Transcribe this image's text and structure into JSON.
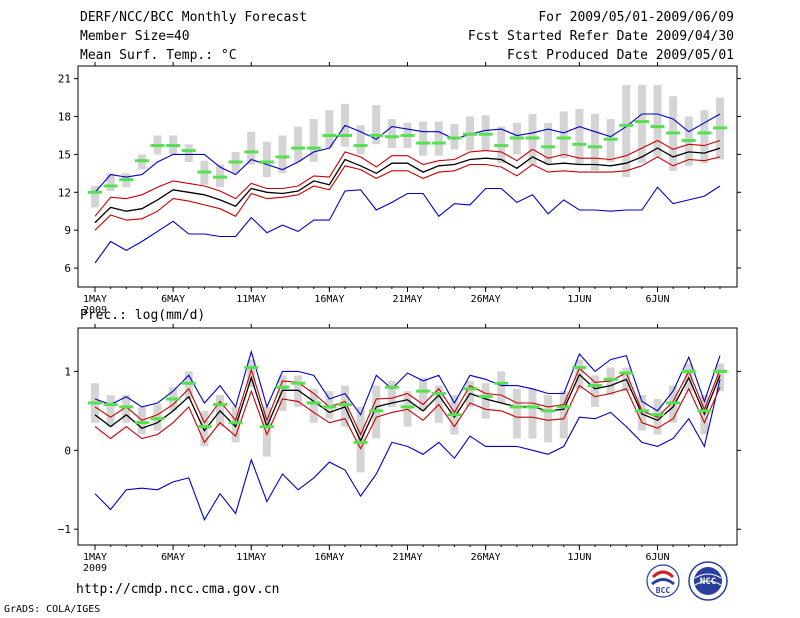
{
  "header": {
    "title": "DERF/NCC/BCC Monthly Forecast",
    "member": "Member Size=40",
    "variable1": "Mean Surf. Temp.: °C",
    "for_range": "For 2009/05/01-2009/06/09",
    "refer_date": "Fcst Started Refer Date 2009/04/30",
    "produced_date": "Fcst Produced Date 2009/05/01"
  },
  "panel2_label": "Prec.: log(mm/d)",
  "url": "http://cmdp.ncc.cma.gov.cn",
  "credit": "GrADS: COLA/IGES",
  "logos": {
    "bcc": "BCC",
    "ncc": "NCC"
  },
  "colors": {
    "box": "#d4d4d4",
    "median": "#55e050",
    "envelope": "#0000c8",
    "quartile": "#c80000",
    "mean": "#000000"
  },
  "chart_data": [
    {
      "type": "line",
      "title": "Mean Surf. Temp.: °C",
      "ylim": [
        4.5,
        22
      ],
      "yticks": [
        6,
        9,
        12,
        15,
        18,
        21
      ],
      "ytick_labels": [
        "6",
        "9",
        "12",
        "15",
        "18",
        "21"
      ],
      "xtick_days": [
        0,
        5,
        10,
        15,
        20,
        25,
        31,
        36
      ],
      "xtick_labels": [
        "1MAY",
        "6MAY",
        "11MAY",
        "16MAY",
        "21MAY",
        "26MAY",
        "1JUN",
        "6JUN"
      ],
      "year_label": "2009",
      "n_days": 40,
      "series": [
        {
          "name": "max",
          "values": [
            12,
            13.4,
            13.2,
            13.4,
            14.4,
            15,
            15,
            15,
            14,
            13.4,
            14.6,
            14.2,
            13.8,
            14.4,
            15.2,
            15.5,
            17.3,
            16.8,
            16.2,
            17.2,
            17,
            16.8,
            16.8,
            16.2,
            16.6,
            16.9,
            17,
            16.5,
            16.7,
            17,
            16.7,
            17.2,
            16.8,
            16.4,
            17.2,
            18.2,
            18.2,
            17.8,
            16.8,
            17.5,
            18.2
          ]
        },
        {
          "name": "q75",
          "values": [
            10.1,
            11.6,
            11.5,
            11.8,
            12.4,
            12.9,
            12.7,
            12.5,
            12.1,
            11.5,
            12.7,
            12.3,
            12.3,
            12.5,
            13.3,
            13.2,
            15.2,
            14.8,
            14,
            14.9,
            14.9,
            14.2,
            14.5,
            14.6,
            15.2,
            15.3,
            15.2,
            14.5,
            15.4,
            14.7,
            15,
            14.7,
            14.7,
            14.6,
            14.9,
            15.5,
            16.1,
            15.4,
            15.8,
            15.7,
            16.1
          ]
        },
        {
          "name": "mean",
          "values": [
            9.6,
            10.8,
            10.5,
            10.7,
            11.4,
            12.2,
            12,
            11.8,
            11.4,
            10.9,
            12.3,
            12,
            11.9,
            12.1,
            12.9,
            12.6,
            14.6,
            14.1,
            13.5,
            14.3,
            14.3,
            13.6,
            14.1,
            14.2,
            14.6,
            14.7,
            14.6,
            13.9,
            14.8,
            14.2,
            14.3,
            14.2,
            14.2,
            14.1,
            14.3,
            14.8,
            15.5,
            14.8,
            15.2,
            15.1,
            15.5
          ]
        },
        {
          "name": "q25",
          "values": [
            9,
            10.2,
            9.8,
            9.9,
            10.5,
            11.5,
            11.3,
            11,
            10.7,
            10.1,
            11.9,
            11.5,
            11.6,
            11.8,
            12.5,
            12.2,
            14.1,
            13.8,
            13.1,
            13.7,
            13.7,
            13.1,
            13.6,
            13.7,
            14.2,
            14.2,
            14,
            13.3,
            14.2,
            13.6,
            13.7,
            13.6,
            13.6,
            13.6,
            13.7,
            14.1,
            14.8,
            14.1,
            14.6,
            14.5,
            14.8
          ]
        },
        {
          "name": "min",
          "values": [
            6.4,
            8.1,
            7.4,
            8.1,
            8.9,
            9.7,
            8.7,
            8.7,
            8.5,
            8.5,
            10,
            8.8,
            9.4,
            8.9,
            9.8,
            9.8,
            12.1,
            12.2,
            10.6,
            11.2,
            11.9,
            11.9,
            10.1,
            11.1,
            11,
            12.3,
            12.3,
            11.2,
            11.8,
            10.3,
            11.4,
            10.6,
            10.6,
            10.5,
            10.6,
            10.6,
            12.4,
            11.1,
            11.4,
            11.7,
            12.5
          ]
        },
        {
          "name": "median",
          "values": [
            12,
            12.5,
            13,
            14.5,
            15.7,
            15.7,
            15.3,
            13.6,
            13.2,
            14.4,
            15.2,
            14.4,
            14.8,
            15.5,
            15.5,
            16.5,
            16.5,
            15.7,
            16.5,
            16.4,
            16.5,
            15.9,
            15.9,
            16.3,
            16.6,
            16.6,
            15.7,
            16.3,
            16.3,
            15.6,
            16.3,
            15.8,
            15.6,
            16.2,
            17.3,
            17.6,
            17.2,
            16.7,
            16.1,
            16.7,
            17.1
          ]
        },
        {
          "name": "box_top",
          "values": [
            12.5,
            13.5,
            13.5,
            15,
            16.5,
            16.5,
            15.8,
            14.5,
            14.2,
            15.2,
            16.8,
            16,
            16.5,
            17.2,
            17.8,
            18.5,
            19,
            17.3,
            18.9,
            17.8,
            17.5,
            17.6,
            17.6,
            17.4,
            18,
            18.1,
            17.2,
            17.5,
            18.2,
            17.5,
            18.4,
            18.6,
            18.2,
            17.8,
            20.5,
            20.5,
            20.5,
            19.6,
            18,
            18.5,
            19.5
          ]
        },
        {
          "name": "box_bottom",
          "values": [
            10.8,
            12.1,
            12.4,
            13.8,
            15,
            15,
            14.4,
            12.6,
            12.4,
            13.5,
            14.2,
            13.2,
            13.5,
            14.4,
            14.4,
            15.5,
            15.6,
            15,
            15.8,
            15.5,
            15.5,
            14.9,
            14.9,
            15.4,
            15.3,
            15.3,
            14.3,
            15,
            14.2,
            14.2,
            14.7,
            14.2,
            13.7,
            14.4,
            13.2,
            14.3,
            14.8,
            13.7,
            14.1,
            14.3,
            14.6
          ]
        }
      ]
    },
    {
      "type": "line",
      "title": "Prec.: log(mm/d)",
      "ylim": [
        -1.2,
        1.55
      ],
      "yticks": [
        -1,
        0,
        1
      ],
      "ytick_labels": [
        "−1",
        "0",
        "1"
      ],
      "xtick_days": [
        0,
        5,
        10,
        15,
        20,
        25,
        31,
        36
      ],
      "xtick_labels": [
        "1MAY",
        "6MAY",
        "11MAY",
        "16MAY",
        "21MAY",
        "26MAY",
        "1JUN",
        "6JUN"
      ],
      "year_label": "2009",
      "n_days": 40,
      "series": [
        {
          "name": "max",
          "values": [
            0.65,
            0.58,
            0.68,
            0.55,
            0.6,
            0.75,
            0.95,
            0.6,
            0.82,
            0.55,
            1.25,
            0.55,
            1,
            1,
            0.95,
            0.65,
            0.72,
            0.45,
            0.95,
            0.78,
            0.98,
            0.88,
            0.95,
            0.6,
            0.95,
            0.9,
            0.82,
            0.82,
            0.78,
            0.72,
            0.72,
            1.22,
            1.0,
            1.15,
            1.2,
            0.62,
            0.5,
            0.75,
            1.18,
            0.62,
            1.2
          ]
        },
        {
          "name": "q75",
          "values": [
            0.55,
            0.42,
            0.55,
            0.38,
            0.45,
            0.58,
            0.78,
            0.35,
            0.62,
            0.38,
            1.02,
            0.38,
            0.88,
            0.86,
            0.72,
            0.55,
            0.62,
            0.2,
            0.65,
            0.66,
            0.72,
            0.58,
            0.78,
            0.48,
            0.82,
            0.72,
            0.7,
            0.6,
            0.6,
            0.55,
            0.58,
            1.04,
            0.86,
            0.88,
            0.98,
            0.5,
            0.42,
            0.62,
            1.0,
            0.52,
            1.02
          ]
        },
        {
          "name": "mean",
          "values": [
            0.45,
            0.3,
            0.45,
            0.28,
            0.35,
            0.5,
            0.68,
            0.25,
            0.5,
            0.3,
            0.92,
            0.3,
            0.76,
            0.76,
            0.62,
            0.48,
            0.55,
            0.12,
            0.55,
            0.6,
            0.64,
            0.5,
            0.7,
            0.42,
            0.72,
            0.65,
            0.6,
            0.55,
            0.55,
            0.5,
            0.52,
            0.96,
            0.78,
            0.82,
            0.9,
            0.46,
            0.38,
            0.55,
            0.92,
            0.46,
            0.95
          ]
        },
        {
          "name": "q25",
          "values": [
            0.3,
            0.15,
            0.3,
            0.15,
            0.2,
            0.35,
            0.55,
            0.1,
            0.35,
            0.18,
            0.75,
            0.2,
            0.65,
            0.62,
            0.48,
            0.35,
            0.4,
            0.02,
            0.42,
            0.48,
            0.52,
            0.38,
            0.58,
            0.3,
            0.6,
            0.52,
            0.5,
            0.42,
            0.42,
            0.38,
            0.4,
            0.82,
            0.68,
            0.72,
            0.78,
            0.35,
            0.28,
            0.4,
            0.78,
            0.35,
            0.8
          ]
        },
        {
          "name": "min",
          "values": [
            -0.55,
            -0.75,
            -0.5,
            -0.48,
            -0.5,
            -0.4,
            -0.35,
            -0.88,
            -0.55,
            -0.8,
            -0.12,
            -0.65,
            -0.3,
            -0.5,
            -0.35,
            -0.15,
            -0.25,
            -0.58,
            -0.3,
            0.1,
            0.05,
            -0.05,
            0.1,
            -0.1,
            0.18,
            0.05,
            0.05,
            0.05,
            0,
            -0.05,
            0.05,
            0.42,
            0.4,
            0.48,
            0.3,
            0.1,
            0.05,
            0.15,
            0.4,
            0.05,
            0.9
          ]
        },
        {
          "name": "median",
          "values": [
            0.6,
            0.58,
            0.55,
            0.35,
            0.4,
            0.65,
            0.85,
            0.3,
            0.58,
            0.35,
            1.05,
            0.3,
            0.8,
            0.85,
            0.6,
            0.55,
            0.58,
            0.1,
            0.5,
            0.8,
            0.55,
            0.75,
            0.72,
            0.45,
            0.78,
            0.68,
            0.85,
            0.55,
            0.55,
            0.5,
            0.55,
            1.05,
            0.82,
            0.9,
            0.98,
            0.5,
            0.45,
            0.6,
            1.0,
            0.5,
            1.0
          ]
        },
        {
          "name": "box_top",
          "values": [
            0.85,
            0.7,
            0.7,
            0.55,
            0.58,
            0.8,
            1.0,
            0.5,
            0.7,
            0.55,
            1.15,
            0.55,
            0.95,
            0.95,
            0.78,
            0.75,
            0.82,
            0.55,
            0.82,
            0.88,
            0.75,
            0.92,
            0.82,
            0.7,
            0.88,
            0.85,
            1.0,
            0.78,
            0.78,
            0.7,
            0.75,
            1.15,
            0.95,
            1.05,
            1.05,
            0.7,
            0.65,
            0.82,
            1.1,
            0.7,
            1.1
          ]
        },
        {
          "name": "box_bottom",
          "values": [
            0.35,
            0.3,
            0.35,
            0.2,
            0.25,
            0.5,
            0.65,
            0.05,
            0.3,
            0.1,
            0.8,
            -0.08,
            0.5,
            0.55,
            0.35,
            0.4,
            0.3,
            -0.28,
            0.15,
            0.55,
            0.3,
            0.5,
            0.35,
            0.2,
            0.55,
            0.4,
            0.6,
            0.15,
            0.15,
            0.1,
            0.15,
            0.78,
            0.55,
            0.7,
            0.75,
            0.25,
            0.2,
            0.35,
            0.75,
            0.2,
            0.75
          ]
        }
      ]
    }
  ]
}
